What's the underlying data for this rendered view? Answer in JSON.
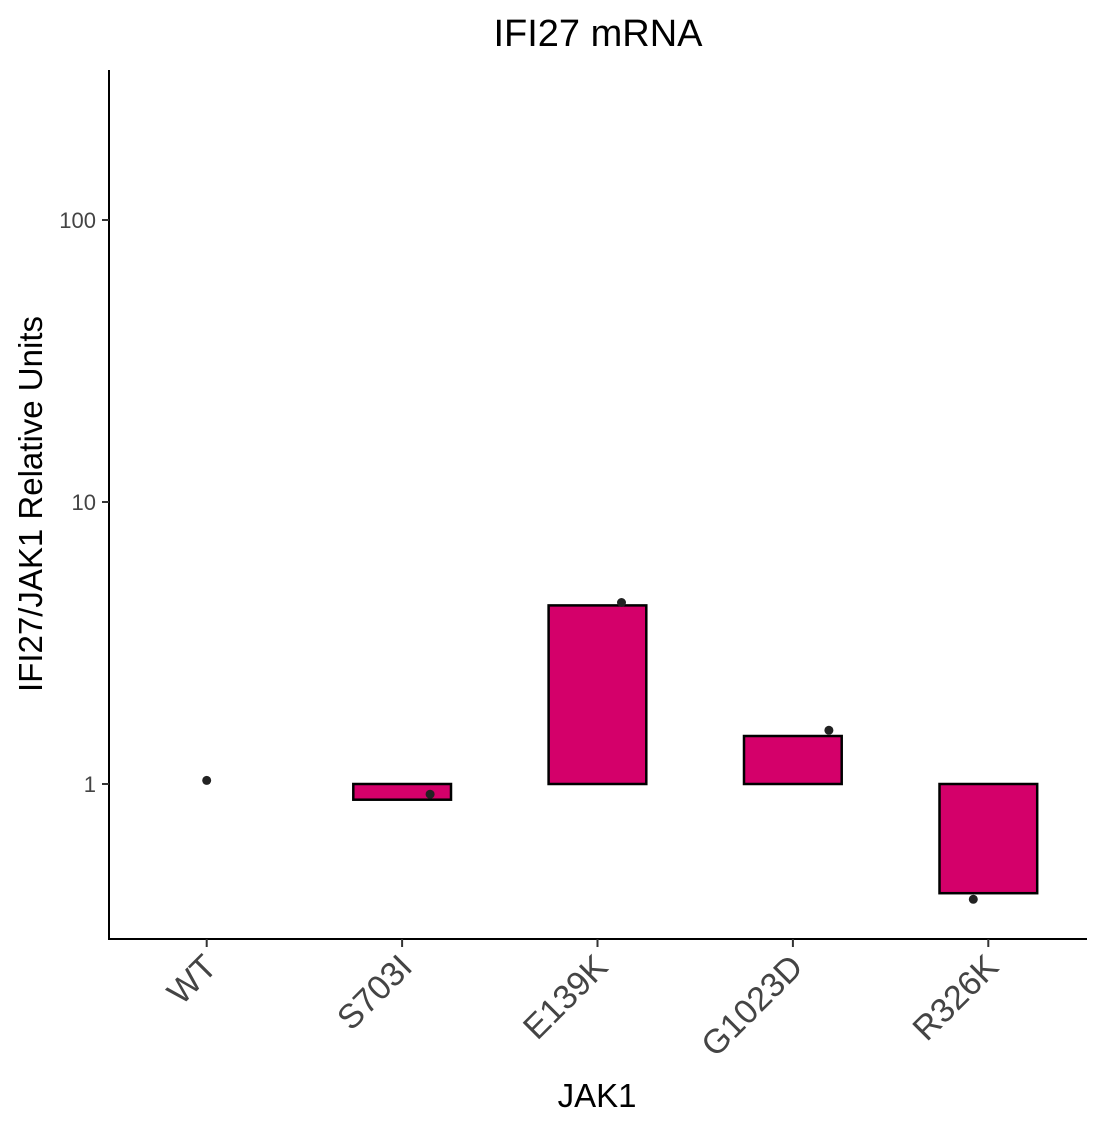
{
  "chart_data": {
    "type": "bar",
    "title": "IFI27 mRNA",
    "xlabel": "JAK1",
    "ylabel": "IFI27/JAK1 Relative Units",
    "y_scale": "log10",
    "ylim": [
      0.32,
      320
    ],
    "yticks": [
      1,
      10,
      100
    ],
    "ytick_labels": [
      "1",
      "10",
      "100"
    ],
    "categories": [
      "WT",
      "S703I",
      "E139K",
      "G1023D",
      "R326K"
    ],
    "baseline": 1,
    "values": [
      1.0,
      0.88,
      4.3,
      1.48,
      0.41
    ],
    "points": [
      1.03,
      0.92,
      4.4,
      1.55,
      0.39
    ],
    "bar_color": "#D4006A",
    "bar_edge_color": "#000000",
    "point_color": "#222222",
    "grid": false,
    "legend": "none"
  }
}
